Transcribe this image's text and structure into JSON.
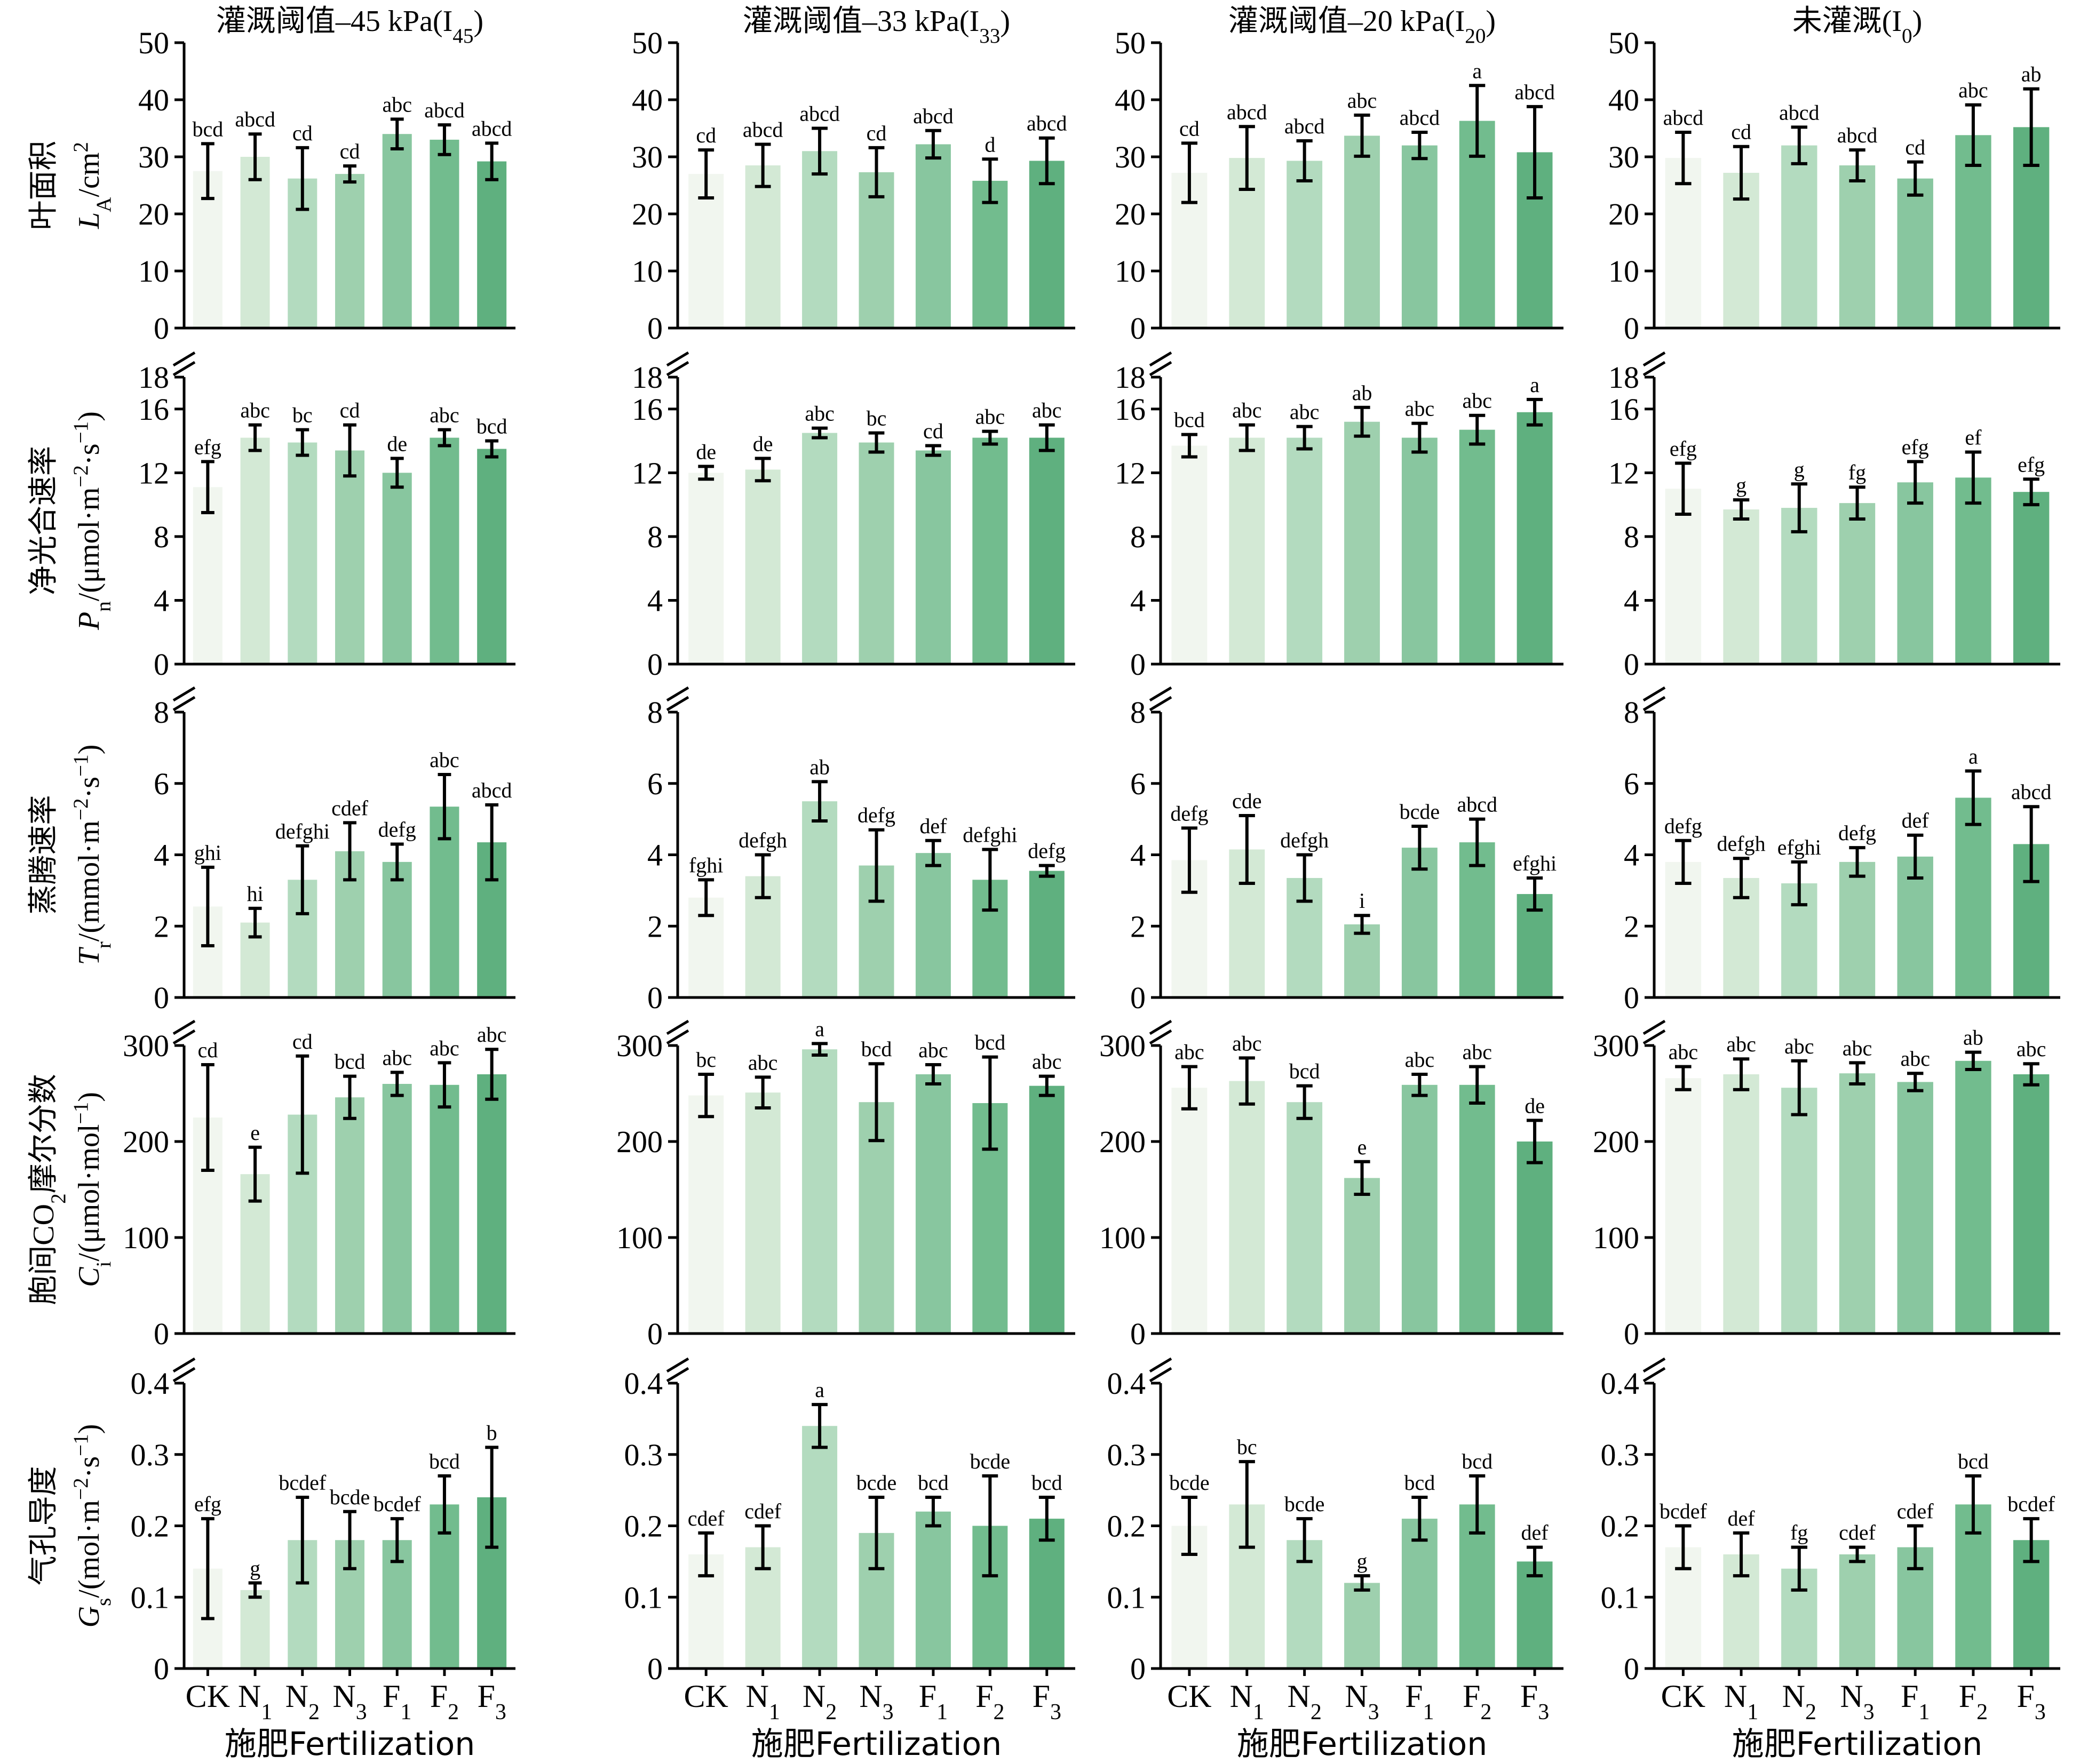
{
  "colors": [
    "#f1f6ef",
    "#d3e9d5",
    "#b3dbbf",
    "#9ed0ae",
    "#88c69f",
    "#72bc8e",
    "#5fb07f"
  ],
  "chart_data": {
    "type": "bar",
    "layout": "grid 5 rows × 4 columns, shared categories, error bars with significance letters",
    "categories": [
      "CK",
      "N1",
      "N2",
      "N3",
      "F1",
      "F2",
      "F3"
    ],
    "x_label": "施肥Fertilization",
    "panel_titles": [
      "灌溉阈值–45 kPa(I45)",
      "灌溉阈值–33 kPa(I33)",
      "灌溉阈值–20 kPa(I20)",
      "未灌溉(I0)"
    ],
    "rows": [
      {
        "ylabel_cn": "叶面积",
        "ylabel_en": "LA/cm²",
        "ylim": [
          0,
          50
        ],
        "yticks": [
          0,
          10,
          20,
          30,
          40,
          50
        ],
        "panels": [
          {
            "values": [
              27.5,
              30.0,
              26.2,
              27.0,
              34.0,
              33.0,
              29.2
            ],
            "errors": [
              4.8,
              4.0,
              5.4,
              1.4,
              2.6,
              2.6,
              3.2
            ],
            "letters": [
              "bcd",
              "abcd",
              "cd",
              "cd",
              "abc",
              "abcd",
              "abcd"
            ]
          },
          {
            "values": [
              27.0,
              28.5,
              31.0,
              27.3,
              32.2,
              25.8,
              29.3
            ],
            "errors": [
              4.2,
              3.7,
              4.0,
              4.3,
              2.4,
              3.8,
              4.0
            ],
            "letters": [
              "cd",
              "abcd",
              "abcd",
              "cd",
              "abcd",
              "d",
              "abcd"
            ]
          },
          {
            "values": [
              27.2,
              29.8,
              29.3,
              33.7,
              32.0,
              36.3,
              30.8
            ],
            "errors": [
              5.2,
              5.5,
              3.5,
              3.6,
              2.3,
              6.2,
              8.0
            ],
            "letters": [
              "cd",
              "abcd",
              "abcd",
              "abc",
              "abcd",
              "a",
              "abcd"
            ]
          },
          {
            "values": [
              29.8,
              27.2,
              32.0,
              28.5,
              26.2,
              33.8,
              35.2
            ],
            "errors": [
              4.5,
              4.6,
              3.2,
              2.7,
              2.9,
              5.3,
              6.7
            ],
            "letters": [
              "abcd",
              "cd",
              "abcd",
              "abcd",
              "cd",
              "abc",
              "ab"
            ]
          }
        ]
      },
      {
        "ylabel_cn": "净光合速率",
        "ylabel_en": "Pn/(μmol·m⁻²·s⁻¹)",
        "ylim": [
          0,
          18
        ],
        "yticks": [
          0,
          4,
          8,
          12,
          16,
          18
        ],
        "panels": [
          {
            "values": [
              11.1,
              14.2,
              13.9,
              13.4,
              12.0,
              14.2,
              13.5
            ],
            "errors": [
              1.6,
              0.8,
              0.8,
              1.6,
              0.9,
              0.5,
              0.5
            ],
            "letters": [
              "efg",
              "abc",
              "bc",
              "cd",
              "de",
              "abc",
              "bcd"
            ]
          },
          {
            "values": [
              12.0,
              12.2,
              14.5,
              13.9,
              13.4,
              14.2,
              14.2
            ],
            "errors": [
              0.4,
              0.7,
              0.3,
              0.6,
              0.3,
              0.4,
              0.8
            ],
            "letters": [
              "de",
              "de",
              "abc",
              "bc",
              "cd",
              "abc",
              "abc"
            ]
          },
          {
            "values": [
              13.7,
              14.2,
              14.2,
              15.2,
              14.2,
              14.7,
              15.8
            ],
            "errors": [
              0.7,
              0.8,
              0.7,
              0.9,
              0.9,
              0.9,
              0.8
            ],
            "letters": [
              "bcd",
              "abc",
              "abc",
              "ab",
              "abc",
              "abc",
              "a"
            ]
          },
          {
            "values": [
              11.0,
              9.7,
              9.8,
              10.1,
              11.4,
              11.7,
              10.8
            ],
            "errors": [
              1.6,
              0.6,
              1.5,
              1.0,
              1.3,
              1.6,
              0.8
            ],
            "letters": [
              "efg",
              "g",
              "g",
              "fg",
              "efg",
              "ef",
              "efg"
            ]
          }
        ]
      },
      {
        "ylabel_cn": "蒸腾速率",
        "ylabel_en": "Tr/(mmol·m⁻²·s⁻¹)",
        "ylim": [
          0,
          8
        ],
        "yticks": [
          0,
          2,
          4,
          6,
          8
        ],
        "panels": [
          {
            "values": [
              2.55,
              2.1,
              3.3,
              4.1,
              3.8,
              5.35,
              4.35
            ],
            "errors": [
              1.1,
              0.4,
              0.95,
              0.8,
              0.5,
              0.9,
              1.05
            ],
            "letters": [
              "ghi",
              "hi",
              "defghi",
              "cdef",
              "defg",
              "abc",
              "abcd"
            ]
          },
          {
            "values": [
              2.8,
              3.4,
              5.5,
              3.7,
              4.05,
              3.3,
              3.55
            ],
            "errors": [
              0.5,
              0.6,
              0.55,
              1.0,
              0.35,
              0.85,
              0.15
            ],
            "letters": [
              "fghi",
              "defgh",
              "ab",
              "defg",
              "def",
              "defghi",
              "defg"
            ]
          },
          {
            "values": [
              3.85,
              4.15,
              3.35,
              2.05,
              4.2,
              4.35,
              2.9
            ],
            "errors": [
              0.9,
              0.95,
              0.65,
              0.25,
              0.6,
              0.65,
              0.45
            ],
            "letters": [
              "defg",
              "cde",
              "defgh",
              "i",
              "bcde",
              "abcd",
              "efghi"
            ]
          },
          {
            "values": [
              3.8,
              3.35,
              3.2,
              3.8,
              3.95,
              5.6,
              4.3
            ],
            "errors": [
              0.6,
              0.55,
              0.6,
              0.4,
              0.6,
              0.75,
              1.05
            ],
            "letters": [
              "defg",
              "defgh",
              "efghi",
              "defg",
              "def",
              "a",
              "abcd"
            ]
          }
        ]
      },
      {
        "ylabel_cn": "胞间CO₂摩尔分数",
        "ylabel_en": "Ci/(μmol·mol⁻¹)",
        "ylim": [
          0,
          300
        ],
        "yticks": [
          0,
          100,
          200,
          300
        ],
        "panels": [
          {
            "values": [
              225,
              166,
              228,
              246,
              260,
              259,
              270
            ],
            "errors": [
              55,
              28,
              61,
              22,
              12,
              23,
              26
            ],
            "letters": [
              "cd",
              "e",
              "cd",
              "bcd",
              "abc",
              "abc",
              "abc"
            ]
          },
          {
            "values": [
              248,
              251,
              296,
              241,
              270,
              240,
              258
            ],
            "errors": [
              22,
              16,
              6,
              40,
              10,
              48,
              10
            ],
            "letters": [
              "bc",
              "abc",
              "a",
              "bcd",
              "abc",
              "bcd",
              "abc"
            ]
          },
          {
            "values": [
              256,
              263,
              241,
              162,
              259,
              259,
              200
            ],
            "errors": [
              22,
              24,
              17,
              17,
              11,
              19,
              22
            ],
            "letters": [
              "abc",
              "abc",
              "bcd",
              "e",
              "abc",
              "abc",
              "de"
            ]
          },
          {
            "values": [
              266,
              270,
              256,
              271,
              262,
              284,
              270
            ],
            "errors": [
              12,
              16,
              28,
              11,
              9,
              9,
              11
            ],
            "letters": [
              "abc",
              "abc",
              "abc",
              "abc",
              "abc",
              "ab",
              "abc"
            ]
          }
        ]
      },
      {
        "ylabel_cn": "气孔导度",
        "ylabel_en": "Gs/(mol·m⁻²·s⁻¹)",
        "ylim": [
          0,
          0.4
        ],
        "yticks": [
          0,
          0.1,
          0.2,
          0.3,
          0.4
        ],
        "panels": [
          {
            "values": [
              0.14,
              0.11,
              0.18,
              0.18,
              0.18,
              0.23,
              0.24
            ],
            "errors": [
              0.07,
              0.01,
              0.06,
              0.04,
              0.03,
              0.04,
              0.07
            ],
            "letters": [
              "efg",
              "g",
              "bcdef",
              "bcde",
              "bcdef",
              "bcd",
              "b"
            ]
          },
          {
            "values": [
              0.16,
              0.17,
              0.34,
              0.19,
              0.22,
              0.2,
              0.21
            ],
            "errors": [
              0.03,
              0.03,
              0.03,
              0.05,
              0.02,
              0.07,
              0.03
            ],
            "letters": [
              "cdef",
              "cdef",
              "a",
              "bcde",
              "bcd",
              "bcde",
              "bcd"
            ]
          },
          {
            "values": [
              0.2,
              0.23,
              0.18,
              0.12,
              0.21,
              0.23,
              0.15
            ],
            "errors": [
              0.04,
              0.06,
              0.03,
              0.01,
              0.03,
              0.04,
              0.02
            ],
            "letters": [
              "bcde",
              "bc",
              "bcde",
              "g",
              "bcd",
              "bcd",
              "def"
            ]
          },
          {
            "values": [
              0.17,
              0.16,
              0.14,
              0.16,
              0.17,
              0.23,
              0.18
            ],
            "errors": [
              0.03,
              0.03,
              0.03,
              0.01,
              0.03,
              0.04,
              0.03
            ],
            "letters": [
              "bcdef",
              "def",
              "fg",
              "cdef",
              "cdef",
              "bcd",
              "bcdef"
            ]
          }
        ]
      }
    ]
  }
}
